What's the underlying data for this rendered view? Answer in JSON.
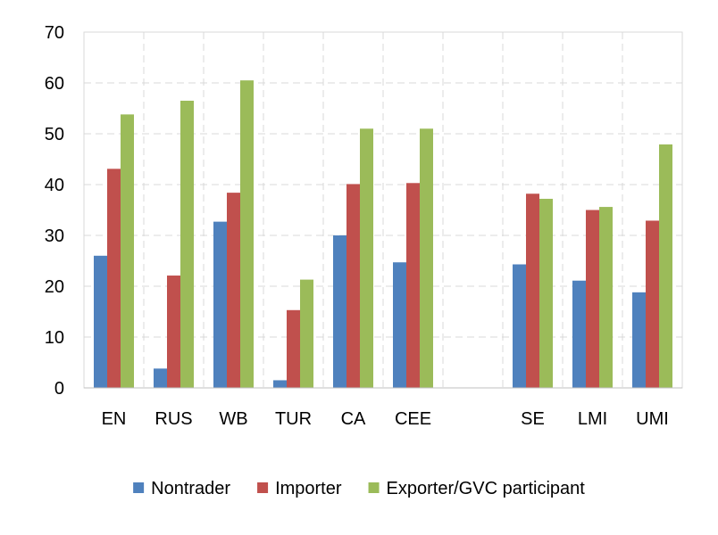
{
  "chart_data": {
    "type": "bar",
    "title": "",
    "xlabel": "",
    "ylabel": "",
    "ylim": [
      0,
      70
    ],
    "yticks": [
      0,
      10,
      20,
      30,
      40,
      50,
      60,
      70
    ],
    "grid": true,
    "legend_position": "bottom",
    "categories": [
      "EN",
      "RUS",
      "WB",
      "TUR",
      "CA",
      "CEE",
      "",
      "SE",
      "LMI",
      "UMI"
    ],
    "series": [
      {
        "name": "Nontrader",
        "color": "#4f81bd",
        "values": [
          26.0,
          3.8,
          32.7,
          1.5,
          30.0,
          24.7,
          null,
          24.3,
          21.1,
          18.8
        ]
      },
      {
        "name": "Importer",
        "color": "#c0504d",
        "values": [
          43.1,
          22.1,
          38.4,
          15.3,
          40.1,
          40.3,
          null,
          38.2,
          35.0,
          32.9
        ]
      },
      {
        "name": "Exporter/GVC participant",
        "color": "#9bbb59",
        "values": [
          53.8,
          56.5,
          60.5,
          21.3,
          51.0,
          51.0,
          null,
          37.2,
          35.6,
          47.9
        ]
      }
    ]
  }
}
